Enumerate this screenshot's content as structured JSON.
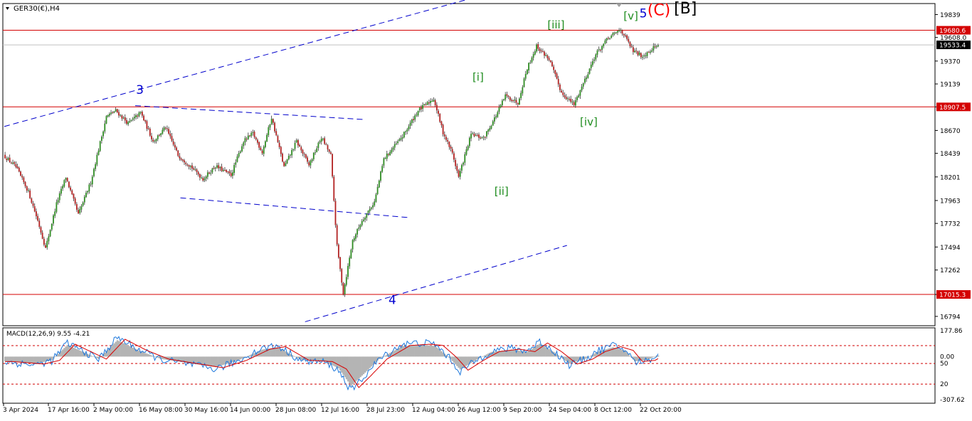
{
  "colors": {
    "background": "#ffffff",
    "bull_body": "#2e8b22",
    "bear_body": "#b22222",
    "wick": "#303030",
    "hline": "#d40000",
    "channel": "#0000cc",
    "label_blue": "#0000d0",
    "label_green": "#1e8c1e",
    "label_red": "#ff0000",
    "label_black": "#000000",
    "macd_hist": "#b4b4b4",
    "macd_line": "#1e78dc",
    "macd_signal": "#d80000",
    "axis_text": "#000000",
    "price_tag_red": "#d40000",
    "price_tag_dark": "#000000"
  },
  "header": {
    "symbol_label": "GER30(€),H4",
    "menu_icon": "triangle-down-icon"
  },
  "macd_header": {
    "label": "MACD(12,26,9) 9.55 -4.21"
  },
  "chart_data": {
    "type": "candlestick",
    "symbol": "GER30(€)",
    "timeframe": "H4",
    "price_axis": {
      "ylim": [
        16700,
        19950
      ],
      "ticks": [
        19839,
        19608.0,
        19370,
        19139,
        18907.5,
        18670,
        18439,
        18201,
        17963,
        17732,
        17494,
        17262,
        17015.3,
        16794
      ],
      "tick_labels": [
        "19839",
        "19608.0",
        "19370",
        "19139",
        "18907.5",
        "18670",
        "18439",
        "18201",
        "17963",
        "17732",
        "17494",
        "17262",
        "17015.3",
        "16794"
      ]
    },
    "time_axis": {
      "labels": [
        "3 Apr 2024",
        "17 Apr 16:00",
        "2 May 00:00",
        "16 May 08:00",
        "30 May 16:00",
        "14 Jun 00:00",
        "28 Jun 08:00",
        "12 Jul 16:00",
        "28 Jul 23:00",
        "12 Aug 04:00",
        "26 Aug 12:00",
        "9 Sep 20:00",
        "24 Sep 04:00",
        "8 Oct 12:00",
        "22 Oct 20:00"
      ]
    },
    "path_pivots": [
      {
        "t": 0,
        "p": 18420
      },
      {
        "t": 8,
        "p": 18300
      },
      {
        "t": 16,
        "p": 18050
      },
      {
        "t": 22,
        "p": 17760
      },
      {
        "t": 27,
        "p": 17480
      },
      {
        "t": 34,
        "p": 17930
      },
      {
        "t": 40,
        "p": 18200
      },
      {
        "t": 48,
        "p": 17820
      },
      {
        "t": 56,
        "p": 18150
      },
      {
        "t": 66,
        "p": 18810
      },
      {
        "t": 72,
        "p": 18870
      },
      {
        "t": 80,
        "p": 18740
      },
      {
        "t": 88,
        "p": 18850
      },
      {
        "t": 96,
        "p": 18560
      },
      {
        "t": 104,
        "p": 18700
      },
      {
        "t": 112,
        "p": 18420
      },
      {
        "t": 120,
        "p": 18310
      },
      {
        "t": 128,
        "p": 18180
      },
      {
        "t": 136,
        "p": 18310
      },
      {
        "t": 146,
        "p": 18220
      },
      {
        "t": 154,
        "p": 18560
      },
      {
        "t": 160,
        "p": 18640
      },
      {
        "t": 166,
        "p": 18450
      },
      {
        "t": 172,
        "p": 18800
      },
      {
        "t": 180,
        "p": 18300
      },
      {
        "t": 188,
        "p": 18560
      },
      {
        "t": 196,
        "p": 18320
      },
      {
        "t": 204,
        "p": 18600
      },
      {
        "t": 210,
        "p": 18420
      },
      {
        "t": 214,
        "p": 17500
      },
      {
        "t": 218,
        "p": 17030
      },
      {
        "t": 224,
        "p": 17560
      },
      {
        "t": 230,
        "p": 17760
      },
      {
        "t": 238,
        "p": 17950
      },
      {
        "t": 244,
        "p": 18380
      },
      {
        "t": 256,
        "p": 18610
      },
      {
        "t": 266,
        "p": 18870
      },
      {
        "t": 276,
        "p": 18990
      },
      {
        "t": 282,
        "p": 18650
      },
      {
        "t": 288,
        "p": 18440
      },
      {
        "t": 292,
        "p": 18200
      },
      {
        "t": 300,
        "p": 18630
      },
      {
        "t": 308,
        "p": 18590
      },
      {
        "t": 316,
        "p": 18820
      },
      {
        "t": 322,
        "p": 19020
      },
      {
        "t": 330,
        "p": 18950
      },
      {
        "t": 336,
        "p": 19300
      },
      {
        "t": 342,
        "p": 19520
      },
      {
        "t": 350,
        "p": 19390
      },
      {
        "t": 358,
        "p": 19050
      },
      {
        "t": 366,
        "p": 18930
      },
      {
        "t": 374,
        "p": 19220
      },
      {
        "t": 380,
        "p": 19440
      },
      {
        "t": 388,
        "p": 19600
      },
      {
        "t": 396,
        "p": 19690
      },
      {
        "t": 404,
        "p": 19470
      },
      {
        "t": 410,
        "p": 19420
      },
      {
        "t": 418,
        "p": 19520
      }
    ],
    "horizontal_levels": [
      {
        "price": 19680.6,
        "label": "19680.6",
        "color": "#d40000"
      },
      {
        "price": 18907.5,
        "label": "18907.5",
        "color": "#d40000"
      },
      {
        "price": 17015.3,
        "label": "17015.3",
        "color": "#d40000"
      }
    ],
    "current_price": {
      "price": 19533.4,
      "label": "19533.4"
    },
    "wave_labels": [
      {
        "text": "3",
        "color": "label_blue",
        "t": 87,
        "price": 19040
      },
      {
        "text": "4",
        "color": "label_blue",
        "t": 249,
        "price": 16920
      },
      {
        "text": "[i]",
        "color": "label_green",
        "t": 304,
        "price": 19170
      },
      {
        "text": "[ii]",
        "color": "label_green",
        "t": 319,
        "price": 18020
      },
      {
        "text": "[iii]",
        "color": "label_green",
        "t": 354,
        "price": 19700
      },
      {
        "text": "[iv]",
        "color": "label_green",
        "t": 375,
        "price": 18720
      },
      {
        "text": "[v]",
        "color": "label_green",
        "t": 402,
        "price": 19790
      },
      {
        "text": "5",
        "color": "label_blue",
        "t": 410,
        "price": 19810
      },
      {
        "text": "(C)",
        "color": "label_red",
        "t": 420,
        "price": 19830
      },
      {
        "text": "[B]",
        "color": "label_black",
        "t": 437,
        "price": 19850
      }
    ],
    "channel_lines": [
      {
        "from": {
          "t": 0,
          "price": 18710
        },
        "to": {
          "t": 306,
          "price": 20030
        }
      },
      {
        "from": {
          "t": 193,
          "price": 16740
        },
        "to": {
          "t": 361,
          "price": 17510
        }
      },
      {
        "from": {
          "t": 84,
          "price": 18920
        },
        "to": {
          "t": 231,
          "price": 18780
        }
      },
      {
        "from": {
          "t": 113,
          "price": 17990
        },
        "to": {
          "t": 260,
          "price": 17790
        }
      }
    ],
    "macd": {
      "params": "12,26,9",
      "main_value": 9.55,
      "signal_value": -4.21,
      "ylim": [
        -307.62,
        177.86
      ],
      "tick_labels": [
        "177.86",
        "0.00",
        "50",
        "20",
        "-307.62"
      ],
      "levels_dashed": [
        80,
        -50,
        -200
      ],
      "pivots": [
        {
          "t": 0,
          "v": -40
        },
        {
          "t": 20,
          "v": -60
        },
        {
          "t": 30,
          "v": -30
        },
        {
          "t": 40,
          "v": 100
        },
        {
          "t": 50,
          "v": 40
        },
        {
          "t": 60,
          "v": -20
        },
        {
          "t": 72,
          "v": 140
        },
        {
          "t": 86,
          "v": 50
        },
        {
          "t": 100,
          "v": -20
        },
        {
          "t": 120,
          "v": -60
        },
        {
          "t": 135,
          "v": -90
        },
        {
          "t": 150,
          "v": -30
        },
        {
          "t": 165,
          "v": 60
        },
        {
          "t": 175,
          "v": 80
        },
        {
          "t": 190,
          "v": -30
        },
        {
          "t": 205,
          "v": -40
        },
        {
          "t": 214,
          "v": -100
        },
        {
          "t": 222,
          "v": -250
        },
        {
          "t": 230,
          "v": -150
        },
        {
          "t": 240,
          "v": -20
        },
        {
          "t": 255,
          "v": 90
        },
        {
          "t": 268,
          "v": 100
        },
        {
          "t": 276,
          "v": 90
        },
        {
          "t": 285,
          "v": -10
        },
        {
          "t": 292,
          "v": -110
        },
        {
          "t": 302,
          "v": -30
        },
        {
          "t": 312,
          "v": 40
        },
        {
          "t": 325,
          "v": 60
        },
        {
          "t": 335,
          "v": 40
        },
        {
          "t": 343,
          "v": 110
        },
        {
          "t": 352,
          "v": 40
        },
        {
          "t": 362,
          "v": -60
        },
        {
          "t": 372,
          "v": -20
        },
        {
          "t": 380,
          "v": 40
        },
        {
          "t": 390,
          "v": 80
        },
        {
          "t": 398,
          "v": 50
        },
        {
          "t": 404,
          "v": -40
        },
        {
          "t": 412,
          "v": -30
        },
        {
          "t": 418,
          "v": 10
        }
      ]
    }
  }
}
